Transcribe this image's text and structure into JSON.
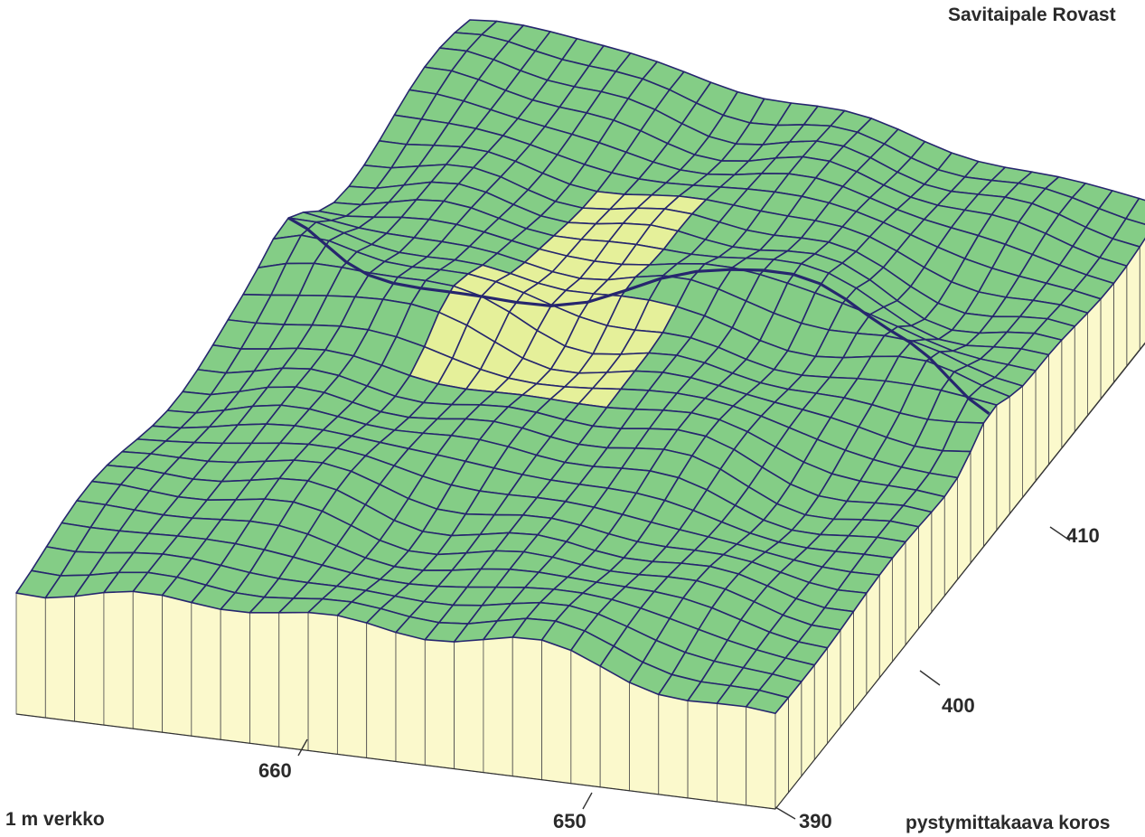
{
  "site_label": "Savitaipale Rovast",
  "grid_label": "1 m verkko",
  "scale_label": "pystymittakaava koros",
  "axis_x_ticks": [
    "660",
    "650"
  ],
  "axis_y_ticks": [
    "390",
    "400",
    "410"
  ],
  "colors": {
    "terrain": "#84cd86",
    "highlight": "#e5f09a",
    "wall": "#fbf9cc",
    "grid_lines": "#26266e",
    "wall_lines": "#4a4a4a"
  }
}
